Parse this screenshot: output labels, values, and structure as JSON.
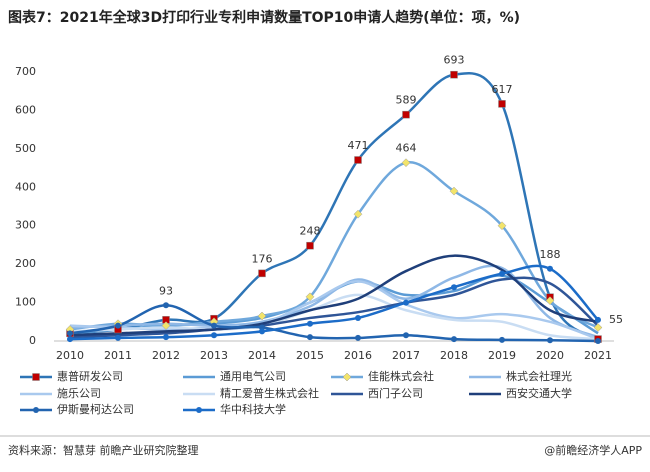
{
  "chart_data": {
    "type": "line",
    "title": "图表7：2021年全球3D打印行业专利申请数量TOP10申请人趋势(单位：项，%)",
    "source": "资料来源：智慧芽 前瞻产业研究院整理",
    "credit": "@前瞻经济学人APP",
    "categories": [
      "2010",
      "2011",
      "2012",
      "2013",
      "2014",
      "2015",
      "2016",
      "2017",
      "2018",
      "2019",
      "2020",
      "2021"
    ],
    "ylim": [
      0,
      700
    ],
    "yticks": [
      0,
      100,
      200,
      300,
      400,
      500,
      600,
      700
    ],
    "series": [
      {
        "name": "惠普研发公司",
        "color": "#2e75b6",
        "marker": "square",
        "marker_color": "#c00000",
        "values": [
          20,
          30,
          55,
          58,
          176,
          248,
          471,
          589,
          693,
          617,
          114,
          5
        ],
        "value_labels": [
          null,
          null,
          null,
          null,
          "176",
          "248",
          "471",
          "589",
          "693",
          "617",
          null,
          null
        ]
      },
      {
        "name": "通用电气公司",
        "color": "#5b9bd5",
        "values": [
          20,
          30,
          40,
          45,
          60,
          100,
          155,
          120,
          130,
          170,
          100,
          20
        ]
      },
      {
        "name": "佳能株式会社",
        "color": "#6fa8dc",
        "marker": "diamond",
        "marker_color": "#f2e46b",
        "values": [
          30,
          45,
          40,
          50,
          65,
          115,
          330,
          464,
          390,
          300,
          105,
          35
        ],
        "value_labels": [
          null,
          null,
          null,
          null,
          null,
          null,
          null,
          "464",
          null,
          null,
          null,
          null
        ]
      },
      {
        "name": "株式会社理光",
        "color": "#8fb8e6",
        "values": [
          35,
          40,
          45,
          40,
          50,
          90,
          160,
          110,
          165,
          190,
          60,
          10
        ]
      },
      {
        "name": "施乐公司",
        "color": "#a9c9ee",
        "values": [
          40,
          35,
          30,
          35,
          45,
          100,
          155,
          95,
          60,
          70,
          50,
          5
        ]
      },
      {
        "name": "精工爱普生株式会社",
        "color": "#c9ddf3",
        "values": [
          25,
          30,
          35,
          30,
          40,
          80,
          120,
          80,
          55,
          50,
          15,
          5
        ]
      },
      {
        "name": "西门子公司",
        "color": "#2f5597",
        "values": [
          10,
          15,
          20,
          30,
          40,
          60,
          75,
          100,
          120,
          160,
          150,
          40
        ]
      },
      {
        "name": "西安交通大学",
        "color": "#1f3f7a",
        "values": [
          15,
          20,
          25,
          30,
          45,
          80,
          110,
          182,
          222,
          185,
          80,
          50
        ]
      },
      {
        "name": "伊斯曼柯达公司",
        "color": "#2264b0",
        "marker": "circle",
        "marker_color": "#2264b0",
        "values": [
          20,
          40,
          93,
          40,
          35,
          10,
          8,
          15,
          5,
          3,
          2,
          0
        ],
        "value_labels": [
          null,
          null,
          "93",
          null,
          null,
          null,
          null,
          null,
          null,
          null,
          null,
          null
        ]
      },
      {
        "name": "华中科技大学",
        "color": "#1c6cc8",
        "marker": "circle",
        "marker_color": "#1c6cc8",
        "values": [
          5,
          8,
          10,
          15,
          25,
          45,
          60,
          100,
          140,
          175,
          188,
          55
        ],
        "value_labels": [
          null,
          null,
          null,
          null,
          null,
          null,
          null,
          null,
          null,
          null,
          "188",
          "55"
        ]
      }
    ]
  }
}
